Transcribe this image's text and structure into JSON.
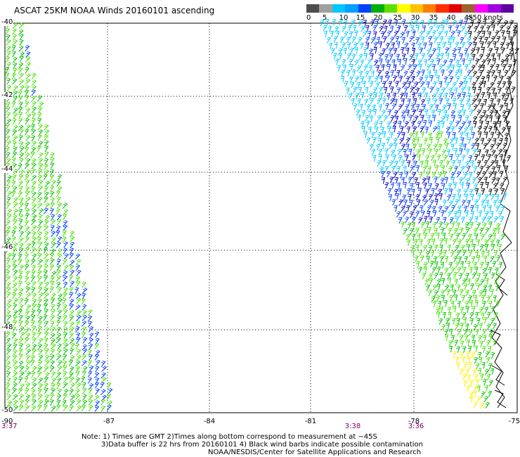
{
  "title": "ASCAT 25KM NOAA Winds 20160101 ascending",
  "speed_scale": {
    "labels": [
      "0",
      "5",
      "10",
      "15",
      "20",
      "25",
      "30",
      "35",
      "40",
      "45",
      ">50 knots"
    ],
    "colors": [
      "#4d4d4d",
      "#a0a0a0",
      "#00c8ff",
      "#00a0ff",
      "#0040ff",
      "#00b000",
      "#60e000",
      "#ffff00",
      "#ffc000",
      "#ff8000",
      "#ff3000",
      "#e00000",
      "#a06030",
      "#ff00ff",
      "#a000e0",
      "#6000a0"
    ]
  },
  "map": {
    "lon_labels": [
      "-90",
      "-87",
      "-84",
      "-81",
      "-78",
      "-75"
    ],
    "lat_labels": [
      "-40",
      "-42",
      "-44",
      "-46",
      "-48",
      "-50"
    ],
    "time_labels": [
      "3:37",
      "3:38",
      "3:36"
    ],
    "land_color": "#000000"
  },
  "notes": [
    "Note: 1) Times are GMT 2)Times along bottom correspond to measurement at −45S",
    "3)Data buffer is 22 hrs from 20160101 4) Black wind barbs indicate possible contamination",
    "NOAA/NESDIS/Center for Satellite Applications and Research"
  ],
  "barb_colors": {
    "calm": "#000000",
    "light_cyan": "#00c8ff",
    "blue": "#0040ff",
    "dark_blue": "#0000c0",
    "green": "#00c000",
    "light_green": "#40e000",
    "yellow": "#ffee00"
  }
}
